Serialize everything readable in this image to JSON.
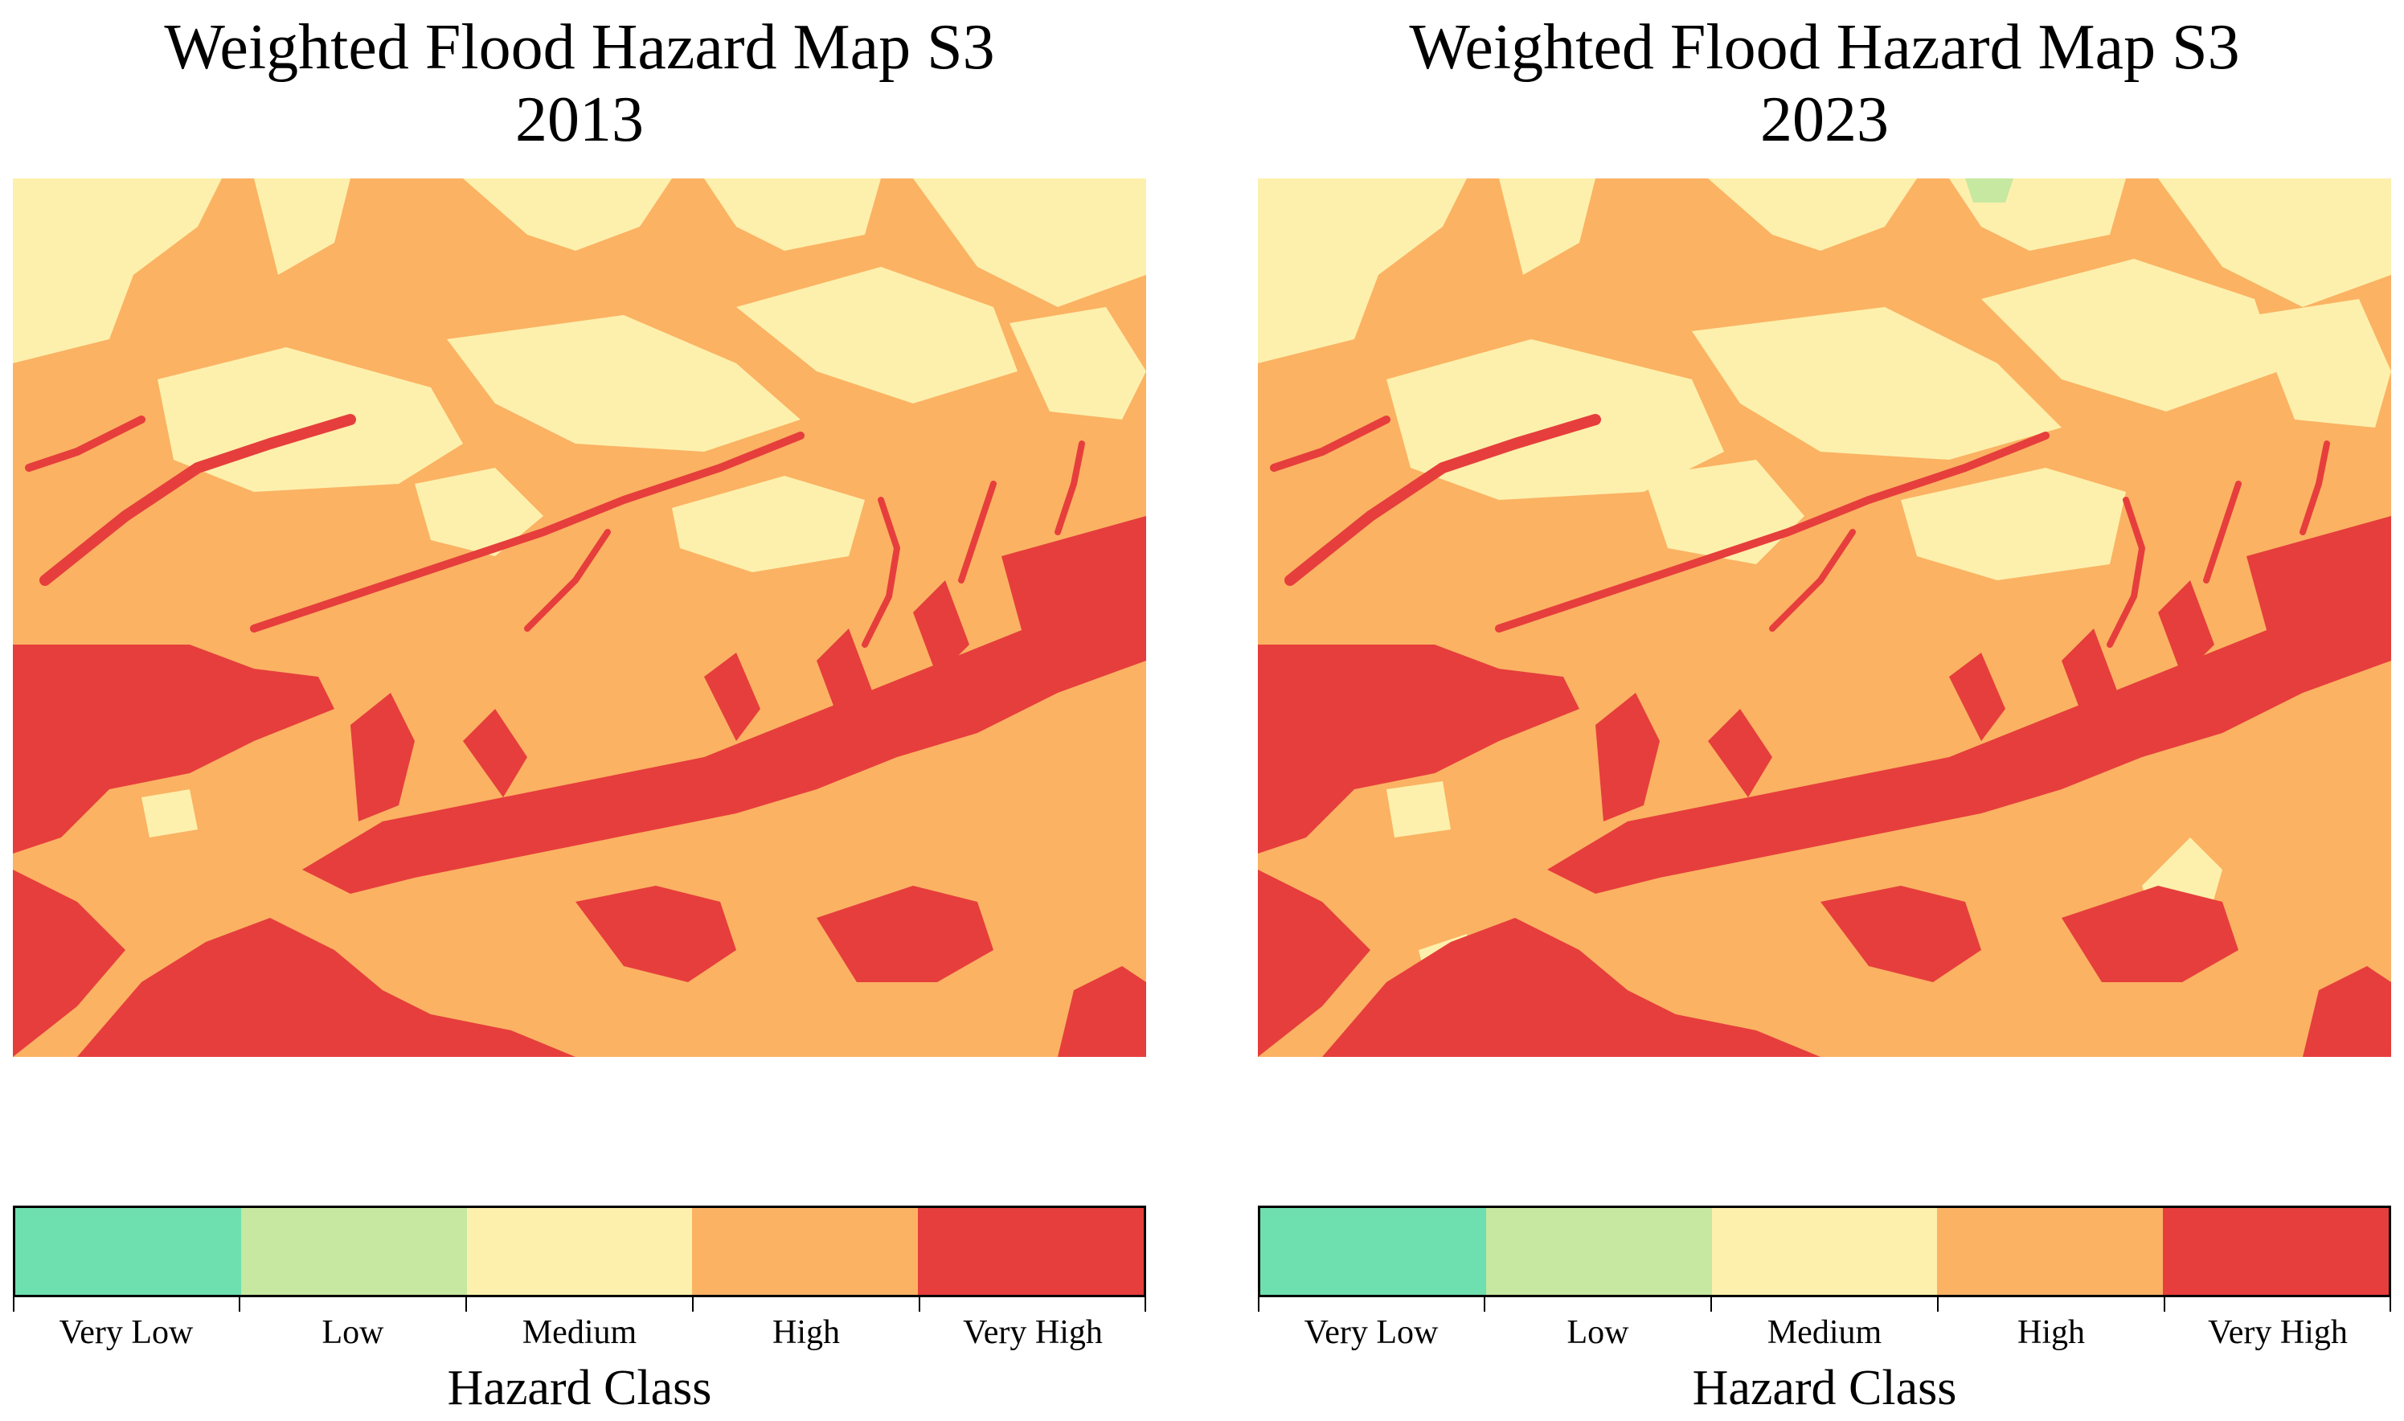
{
  "colors": {
    "very_low": "#6EDFAE",
    "low": "#C6E8A0",
    "medium": "#FDF0AC",
    "high": "#FBB263",
    "very_high": "#E63E3C"
  },
  "panels": [
    {
      "title_line1": "Weighted Flood Hazard Map S3",
      "title_line2": "2013",
      "legend": {
        "classes": [
          "Very Low",
          "Low",
          "Medium",
          "High",
          "Very High"
        ],
        "title": "Hazard Class"
      }
    },
    {
      "title_line1": "Weighted Flood Hazard Map S3",
      "title_line2": "2023",
      "legend": {
        "classes": [
          "Very Low",
          "Low",
          "Medium",
          "High",
          "Very High"
        ],
        "title": "Hazard Class"
      }
    }
  ]
}
